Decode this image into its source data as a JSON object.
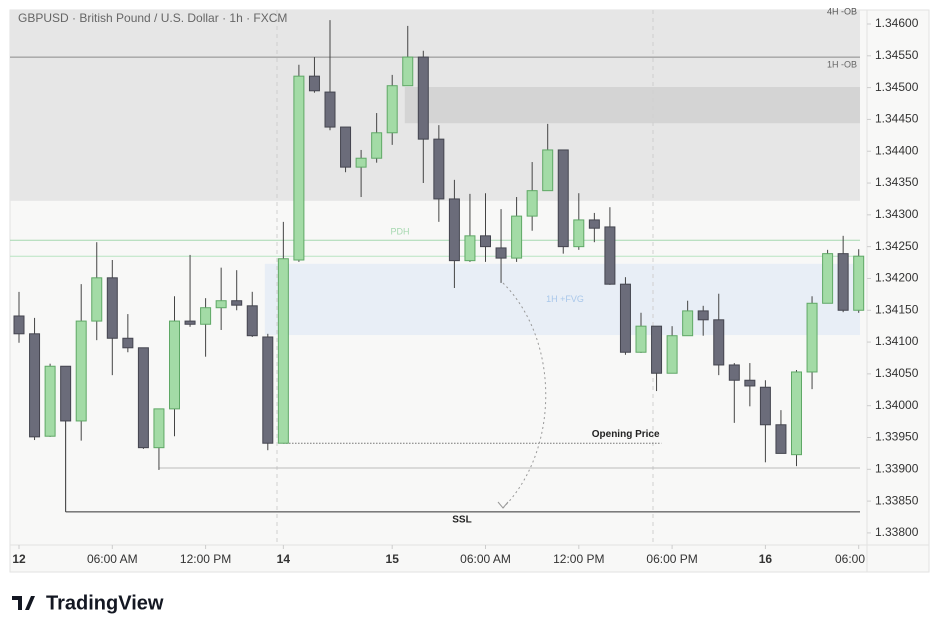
{
  "chart_data": {
    "type": "candlestick",
    "title": "GBPUSD · British Pound / U.S. Dollar · 1h · FXCM",
    "brand": "TradingView",
    "up_color": "#a3dba6",
    "down_color": "#6b6c7a",
    "open": [
      1.34141,
      1.34113,
      1.33952,
      1.34062,
      1.33976,
      1.34133,
      1.34201,
      1.34106,
      1.34091,
      1.33934,
      1.33995,
      1.34133,
      1.34128,
      1.34154,
      1.34165,
      1.34157,
      1.34108,
      1.33941,
      1.34229,
      1.34518,
      1.34493,
      1.34438,
      1.34375,
      1.34389,
      1.34429,
      1.34503,
      1.34548,
      1.34419,
      1.34325,
      1.34228,
      1.34267,
      1.34248,
      1.34232,
      1.34298,
      1.34338,
      1.34402,
      1.3425,
      1.34292,
      1.34281,
      1.34191,
      1.34084,
      1.34125,
      1.34051,
      1.3411,
      1.34149,
      1.34135,
      1.34064,
      1.3404,
      1.34029,
      1.3397,
      1.33923,
      1.34053,
      1.34161,
      1.34239,
      1.3415
    ],
    "high": [
      1.34179,
      1.34138,
      1.34066,
      1.34062,
      1.34191,
      1.34257,
      1.34229,
      1.34144,
      1.34091,
      1.33995,
      1.34172,
      1.34237,
      1.34169,
      1.34217,
      1.34213,
      1.34179,
      1.34113,
      1.34289,
      1.34536,
      1.34548,
      1.34606,
      1.34438,
      1.34402,
      1.3446,
      1.3452,
      1.34597,
      1.34558,
      1.34441,
      1.34355,
      1.34333,
      1.34334,
      1.34309,
      1.34328,
      1.34383,
      1.34443,
      1.34402,
      1.34334,
      1.34303,
      1.34312,
      1.34202,
      1.34146,
      1.34125,
      1.34125,
      1.34165,
      1.34157,
      1.34176,
      1.34067,
      1.34067,
      1.3404,
      1.33993,
      1.34056,
      1.34172,
      1.34245,
      1.34267,
      1.34246
    ],
    "low": [
      1.34099,
      1.33946,
      1.33951,
      1.33976,
      1.33945,
      1.34103,
      1.34048,
      1.34084,
      1.33932,
      1.33899,
      1.33952,
      1.34124,
      1.34077,
      1.34119,
      1.3415,
      1.34108,
      1.3393,
      1.33941,
      1.34226,
      1.34492,
      1.34433,
      1.34367,
      1.34328,
      1.34382,
      1.3441,
      1.34503,
      1.3435,
      1.34289,
      1.34185,
      1.34226,
      1.34226,
      1.34193,
      1.34226,
      1.34275,
      1.34338,
      1.34239,
      1.34245,
      1.34257,
      1.3419,
      1.3408,
      1.34083,
      1.34023,
      1.34051,
      1.3411,
      1.3411,
      1.34048,
      1.33973,
      1.33999,
      1.33911,
      1.33925,
      1.33905,
      1.34026,
      1.34161,
      1.34147,
      1.34146
    ],
    "close": [
      1.34113,
      1.33951,
      1.34062,
      1.33976,
      1.34133,
      1.34201,
      1.34106,
      1.34091,
      1.33934,
      1.33995,
      1.34133,
      1.34128,
      1.34154,
      1.34165,
      1.34158,
      1.3411,
      1.33941,
      1.34231,
      1.34518,
      1.34495,
      1.34438,
      1.34375,
      1.34389,
      1.34429,
      1.34503,
      1.34548,
      1.34419,
      1.34325,
      1.34228,
      1.34267,
      1.3425,
      1.34232,
      1.34298,
      1.34338,
      1.34402,
      1.3425,
      1.34292,
      1.34279,
      1.34191,
      1.34084,
      1.34125,
      1.34051,
      1.3411,
      1.34149,
      1.34135,
      1.34064,
      1.3404,
      1.34031,
      1.3397,
      1.33925,
      1.34053,
      1.34161,
      1.34239,
      1.3415,
      1.34235
    ],
    "ylim": [
      1.33781,
      1.34622
    ],
    "yticks": [
      {
        "value": 1.338,
        "label": "1.33800"
      },
      {
        "value": 1.3385,
        "label": "1.33850"
      },
      {
        "value": 1.339,
        "label": "1.33900"
      },
      {
        "value": 1.3395,
        "label": "1.33950"
      },
      {
        "value": 1.34,
        "label": "1.34000"
      },
      {
        "value": 1.3405,
        "label": "1.34050"
      },
      {
        "value": 1.341,
        "label": "1.34100"
      },
      {
        "value": 1.3415,
        "label": "1.34150"
      },
      {
        "value": 1.342,
        "label": "1.34200"
      },
      {
        "value": 1.3425,
        "label": "1.34250"
      },
      {
        "value": 1.343,
        "label": "1.34300"
      },
      {
        "value": 1.3435,
        "label": "1.34350"
      },
      {
        "value": 1.344,
        "label": "1.34400"
      },
      {
        "value": 1.3445,
        "label": "1.34450"
      },
      {
        "value": 1.345,
        "label": "1.34500"
      },
      {
        "value": 1.3455,
        "label": "1.34550"
      },
      {
        "value": 1.346,
        "label": "1.34600"
      }
    ],
    "xticks": [
      {
        "value": 0,
        "label": "12"
      },
      {
        "value": 6,
        "label": "06:00 AM"
      },
      {
        "value": 12,
        "label": "12:00 PM"
      },
      {
        "value": 17,
        "label": "14"
      },
      {
        "value": 24,
        "label": "15"
      },
      {
        "value": 30,
        "label": "06:00 AM"
      },
      {
        "value": 36,
        "label": "12:00 PM"
      },
      {
        "value": 42,
        "label": "06:00 PM"
      },
      {
        "value": 48,
        "label": "16"
      },
      {
        "value": 54,
        "label": "06:00"
      }
    ],
    "zones": [
      {
        "label": "4H -OB",
        "top": 1.34622,
        "bottom": 1.34322,
        "from": 0,
        "color": "#e6e6e6"
      },
      {
        "top": 1.34501,
        "bottom": 1.34444,
        "from": 25,
        "color": "#d4d4d4"
      },
      {
        "label": "1H +FVG",
        "top": 1.34223,
        "bottom": 1.34111,
        "from": 16,
        "color": "#e8eef6"
      }
    ],
    "lines": [
      {
        "label": "1H -OB",
        "price": 1.34548,
        "from": 0,
        "color": "#8a8a8a"
      },
      {
        "label": "PDH",
        "price": 1.3426,
        "from": 0,
        "color": "#a6d8b0"
      },
      {
        "price": 1.34235,
        "from": 0,
        "color": "#b8e4c2"
      },
      {
        "label": "Opening Price",
        "price": 1.33941,
        "from": 17,
        "to": 41,
        "color": "#333333",
        "dotted": true
      },
      {
        "price": 1.33902,
        "from": 9,
        "color": "#bbbbbb"
      },
      {
        "label": "SSL",
        "price": 1.33833,
        "from": 3,
        "color": "#333333"
      }
    ]
  }
}
